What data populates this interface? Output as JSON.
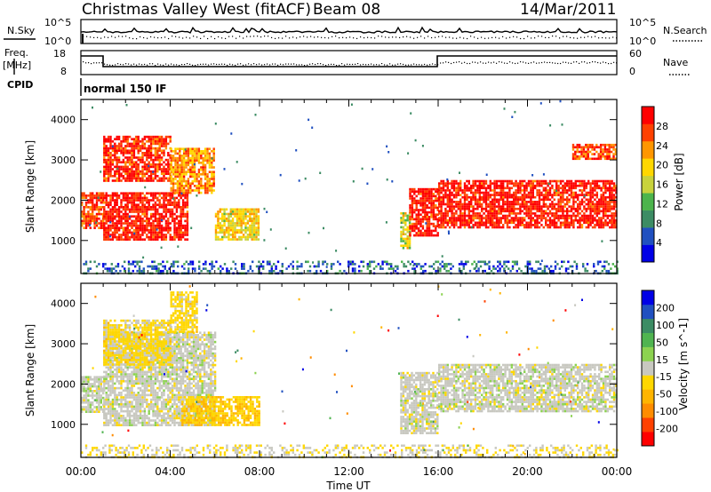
{
  "header": {
    "title": "Christmas Valley West (fitACF)",
    "beam": "Beam 08",
    "date": "14/Mar/2011"
  },
  "panels": {
    "nsky": {
      "label": "N.Sky",
      "ticks": [
        "10^5",
        "10^0"
      ],
      "right_label": "N.Search",
      "right_ticks": [
        "10^5",
        "10^0"
      ]
    },
    "freq": {
      "label_line1": "Freq.",
      "label_line2": "[MHz]",
      "ticks": [
        "18",
        "8"
      ],
      "right_label": "Nave",
      "right_ticks": [
        "60",
        "0"
      ]
    },
    "cpid": {
      "label": "CPID",
      "text": "normal 150 IF"
    }
  },
  "axes": {
    "x_ticks": [
      "00:00",
      "04:00",
      "08:00",
      "12:00",
      "16:00",
      "20:00",
      "00:00"
    ],
    "xlabel": "Time UT",
    "ylabel": "Slant Range [km]",
    "y_ticks": [
      "1000",
      "2000",
      "3000",
      "4000"
    ]
  },
  "colors": {
    "power_scale": [
      "#0000e6",
      "#2050c0",
      "#3c8c64",
      "#4cb44c",
      "#c8d23c",
      "#ffd700",
      "#ff9600",
      "#ff4000",
      "#ff0000"
    ],
    "velocity_scale": [
      "#ff0000",
      "#ff4000",
      "#ff8c00",
      "#ffb400",
      "#ffd700",
      "#c8c8c0",
      "#8cd250",
      "#50b450",
      "#3c8c64",
      "#2050c0",
      "#0000e6"
    ]
  },
  "chart_data": [
    {
      "type": "heatmap",
      "name": "power",
      "xlabel": "Time UT",
      "ylabel": "Slant Range [km]",
      "xlim": [
        "00:00",
        "24:00"
      ],
      "ylim": [
        180,
        4500
      ],
      "colorbar": {
        "label": "Power [dB]",
        "ticks": [
          "4",
          "8",
          "12",
          "16",
          "20",
          "24",
          "28"
        ],
        "range": [
          0,
          30
        ]
      },
      "regions": [
        {
          "t_start": 0.0,
          "t_end": 1.0,
          "range_min": 1300,
          "range_max": 2200,
          "value": 26
        },
        {
          "t_start": 1.0,
          "t_end": 4.8,
          "range_min": 1000,
          "range_max": 2200,
          "value": 28
        },
        {
          "t_start": 1.0,
          "t_end": 4.0,
          "range_min": 2500,
          "range_max": 3600,
          "value": 27
        },
        {
          "t_start": 4.0,
          "t_end": 6.0,
          "range_min": 2200,
          "range_max": 3300,
          "value": 22
        },
        {
          "t_start": 6.0,
          "t_end": 8.0,
          "range_min": 1000,
          "range_max": 1800,
          "value": 18
        },
        {
          "t_start": 14.3,
          "t_end": 14.7,
          "range_min": 800,
          "range_max": 1700,
          "value": 16
        },
        {
          "t_start": 14.7,
          "t_end": 16.0,
          "range_min": 1100,
          "range_max": 2300,
          "value": 28
        },
        {
          "t_start": 16.0,
          "t_end": 24.0,
          "range_min": 1300,
          "range_max": 2500,
          "value": 28
        },
        {
          "t_start": 22.0,
          "t_end": 24.0,
          "range_min": 3000,
          "range_max": 3400,
          "value": 25
        },
        {
          "t_start": 0.0,
          "t_end": 24.0,
          "range_min": 180,
          "range_max": 500,
          "value": 6
        }
      ]
    },
    {
      "type": "heatmap",
      "name": "velocity",
      "xlabel": "Time UT",
      "ylabel": "Slant Range [km]",
      "xlim": [
        "00:00",
        "24:00"
      ],
      "ylim": [
        180,
        4500
      ],
      "colorbar": {
        "label": "Velocity [m s^-1]",
        "ticks": [
          "-200",
          "-100",
          "-50",
          "-15",
          "15",
          "50",
          "100",
          "200"
        ],
        "range": [
          -250,
          250
        ]
      },
      "regions": [
        {
          "t_start": 0.0,
          "t_end": 1.0,
          "range_min": 1300,
          "range_max": 2200,
          "value": 0
        },
        {
          "t_start": 1.0,
          "t_end": 6.0,
          "range_min": 1000,
          "range_max": 3300,
          "value": 0
        },
        {
          "t_start": 1.0,
          "t_end": 4.0,
          "range_min": 2500,
          "range_max": 3600,
          "value": -40
        },
        {
          "t_start": 4.0,
          "t_end": 5.2,
          "range_min": 3300,
          "range_max": 4300,
          "value": -40
        },
        {
          "t_start": 4.5,
          "t_end": 8.0,
          "range_min": 1000,
          "range_max": 1700,
          "value": -60
        },
        {
          "t_start": 14.3,
          "t_end": 16.0,
          "range_min": 800,
          "range_max": 2300,
          "value": 0
        },
        {
          "t_start": 16.0,
          "t_end": 24.0,
          "range_min": 1300,
          "range_max": 2500,
          "value": 0
        },
        {
          "t_start": 0.0,
          "t_end": 24.0,
          "range_min": 180,
          "range_max": 500,
          "value": -20
        }
      ]
    }
  ]
}
